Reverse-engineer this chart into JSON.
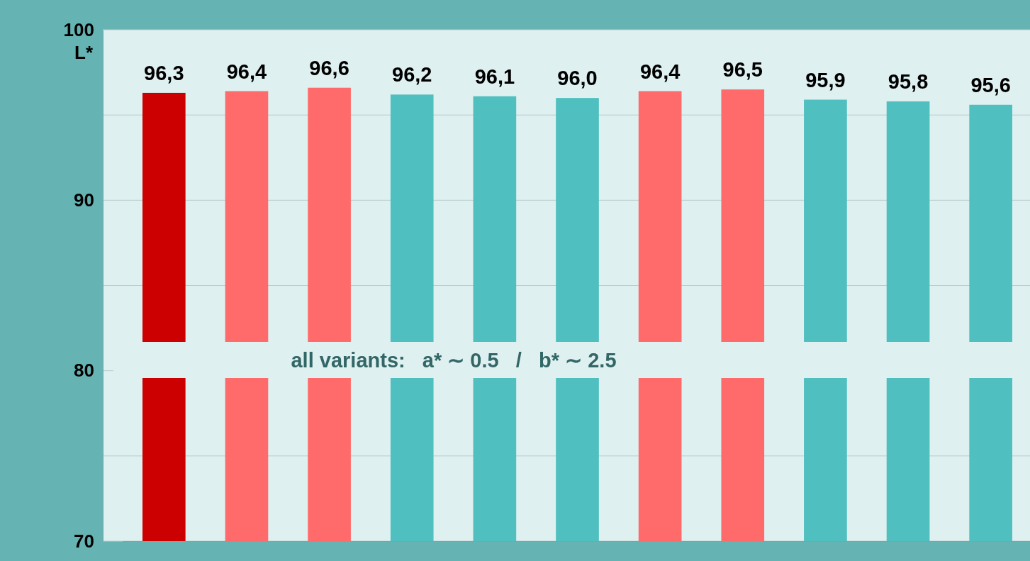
{
  "chart_data": {
    "type": "bar",
    "ylabel": "L*",
    "categories": [
      null,
      null,
      null,
      null,
      null,
      null,
      null,
      null,
      null,
      null,
      null
    ],
    "values": [
      96.3,
      96.4,
      96.6,
      96.2,
      96.1,
      96.0,
      96.4,
      96.5,
      95.9,
      95.8,
      95.6
    ],
    "colors": [
      "#cc0000",
      "#ff6b6b",
      "#ff6b6b",
      "#4fbfbf",
      "#4fbfbf",
      "#4fbfbf",
      "#ff6b6b",
      "#ff6b6b",
      "#4fbfbf",
      "#4fbfbf",
      "#4fbfbf"
    ],
    "value_labels": [
      "96,3",
      "96,4",
      "96,6",
      "96,2",
      "96,1",
      "96,0",
      "96,4",
      "96,5",
      "95,9",
      "95,8",
      "95,6"
    ],
    "ylim": [
      70,
      100
    ],
    "yticks": [
      70,
      {
        "value": 75,
        "label": null
      },
      80,
      {
        "value": 85,
        "label": null
      },
      90,
      {
        "value": 95,
        "label": null
      },
      100
    ],
    "grid": "y",
    "annotations": [
      "all variants:   a* ∼ 0.5   /   b* ∼ 2.5"
    ]
  }
}
